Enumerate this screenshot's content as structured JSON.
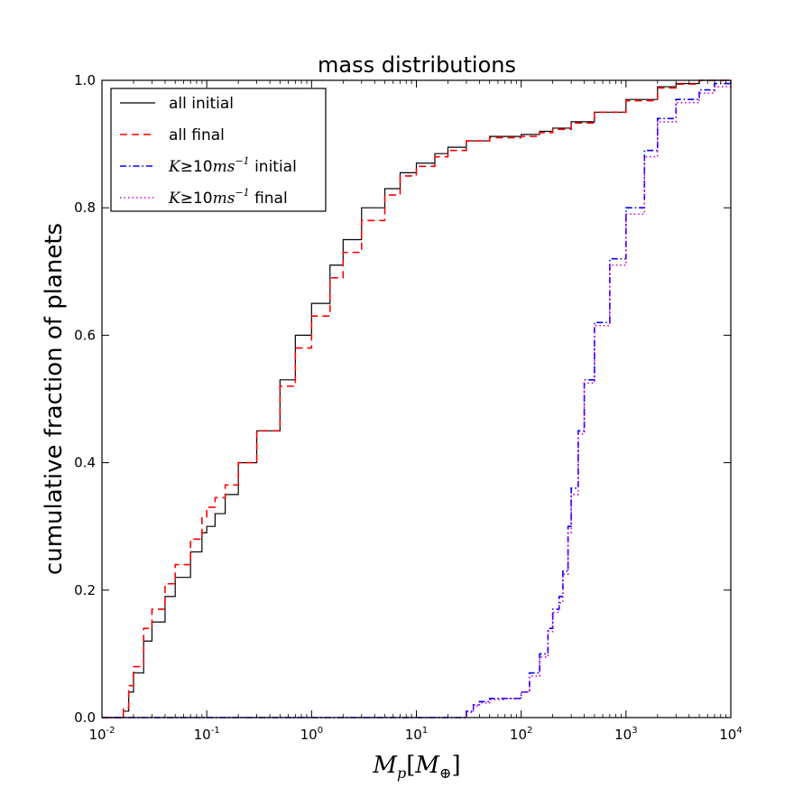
{
  "chart_data": {
    "type": "line",
    "title": "mass distributions",
    "xlabel": {
      "main": "M",
      "sub": "p",
      "open": "[",
      "inner": "M",
      "inner_sub": "⊕",
      "close": "]"
    },
    "ylabel": "cumulative fraction of planets",
    "xscale": "log",
    "xlim": [
      0.01,
      10000
    ],
    "ylim": [
      0.0,
      1.0
    ],
    "x_ticks": [
      {
        "value": 0.01,
        "base": "10",
        "exp": "-2"
      },
      {
        "value": 0.1,
        "base": "10",
        "exp": "-1"
      },
      {
        "value": 1,
        "base": "10",
        "exp": "0"
      },
      {
        "value": 10,
        "base": "10",
        "exp": "1"
      },
      {
        "value": 100,
        "base": "10",
        "exp": "2"
      },
      {
        "value": 1000,
        "base": "10",
        "exp": "3"
      },
      {
        "value": 10000,
        "base": "10",
        "exp": "4"
      }
    ],
    "y_ticks": [
      {
        "value": 0.0,
        "label": "0.0"
      },
      {
        "value": 0.2,
        "label": "0.2"
      },
      {
        "value": 0.4,
        "label": "0.4"
      },
      {
        "value": 0.6,
        "label": "0.6"
      },
      {
        "value": 0.8,
        "label": "0.8"
      },
      {
        "value": 1.0,
        "label": "1.0"
      }
    ],
    "legend_position": "upper-left",
    "series": [
      {
        "name": "all initial",
        "label_parts": [
          {
            "text": "all initial",
            "style": "text"
          }
        ],
        "color": "#000000",
        "linestyle": "solid",
        "x": [
          0.01,
          0.0145,
          0.016,
          0.018,
          0.02,
          0.025,
          0.03,
          0.04,
          0.05,
          0.07,
          0.09,
          0.1,
          0.12,
          0.15,
          0.2,
          0.3,
          0.5,
          0.7,
          1.0,
          1.5,
          2,
          3,
          5,
          7,
          10,
          15,
          20,
          30,
          50,
          100,
          150,
          200,
          300,
          500,
          1000,
          2000,
          3000,
          5000,
          10000
        ],
        "y": [
          0.0,
          0.0,
          0.01,
          0.04,
          0.07,
          0.12,
          0.15,
          0.19,
          0.22,
          0.26,
          0.29,
          0.3,
          0.32,
          0.35,
          0.4,
          0.45,
          0.53,
          0.6,
          0.65,
          0.71,
          0.75,
          0.8,
          0.83,
          0.855,
          0.87,
          0.885,
          0.895,
          0.905,
          0.912,
          0.915,
          0.92,
          0.925,
          0.935,
          0.95,
          0.97,
          0.99,
          0.995,
          1.0,
          1.0
        ]
      },
      {
        "name": "all final",
        "label_parts": [
          {
            "text": "all final",
            "style": "text"
          }
        ],
        "color": "#ff0000",
        "linestyle": "dashed",
        "x": [
          0.01,
          0.0145,
          0.016,
          0.018,
          0.02,
          0.025,
          0.03,
          0.04,
          0.05,
          0.07,
          0.09,
          0.1,
          0.12,
          0.15,
          0.2,
          0.3,
          0.5,
          0.7,
          1.0,
          1.5,
          2,
          3,
          5,
          7,
          10,
          15,
          20,
          30,
          50,
          100,
          150,
          200,
          300,
          500,
          1000,
          2000,
          3000,
          5000,
          10000
        ],
        "y": [
          0.0,
          0.0,
          0.015,
          0.05,
          0.08,
          0.14,
          0.17,
          0.21,
          0.24,
          0.28,
          0.315,
          0.33,
          0.345,
          0.365,
          0.4,
          0.45,
          0.52,
          0.58,
          0.63,
          0.69,
          0.73,
          0.78,
          0.82,
          0.85,
          0.865,
          0.88,
          0.89,
          0.905,
          0.91,
          0.912,
          0.918,
          0.923,
          0.933,
          0.95,
          0.968,
          0.988,
          0.994,
          1.0,
          1.0
        ]
      },
      {
        "name": "K≥10ms^-1 initial",
        "label_parts": [
          {
            "text": "K",
            "style": "math"
          },
          {
            "text": "≥10",
            "style": "upright"
          },
          {
            "text": "ms",
            "style": "math"
          },
          {
            "text": "−1",
            "style": "sup"
          },
          {
            "text": " initial",
            "style": "text"
          }
        ],
        "color": "#0000ff",
        "linestyle": "dashdot",
        "x": [
          0.01,
          28,
          30,
          35,
          40,
          50,
          70,
          100,
          120,
          150,
          180,
          200,
          230,
          250,
          280,
          300,
          350,
          400,
          500,
          700,
          1000,
          1500,
          2000,
          3000,
          5000,
          7000,
          10000
        ],
        "y": [
          0.0,
          0.0,
          0.01,
          0.02,
          0.025,
          0.03,
          0.03,
          0.04,
          0.07,
          0.1,
          0.14,
          0.17,
          0.19,
          0.23,
          0.3,
          0.36,
          0.45,
          0.53,
          0.62,
          0.72,
          0.8,
          0.89,
          0.94,
          0.97,
          0.985,
          0.995,
          1.0
        ]
      },
      {
        "name": "K≥10ms^-1 final",
        "label_parts": [
          {
            "text": "K",
            "style": "math"
          },
          {
            "text": "≥10",
            "style": "upright"
          },
          {
            "text": "ms",
            "style": "math"
          },
          {
            "text": "−1",
            "style": "sup"
          },
          {
            "text": " final",
            "style": "text"
          }
        ],
        "color": "#cc00cc",
        "linestyle": "dotted",
        "x": [
          0.01,
          28,
          30,
          35,
          40,
          50,
          70,
          100,
          120,
          150,
          180,
          200,
          230,
          250,
          280,
          300,
          350,
          400,
          500,
          700,
          1000,
          1500,
          2000,
          3000,
          5000,
          7000,
          10000
        ],
        "y": [
          0.0,
          0.0,
          0.008,
          0.018,
          0.023,
          0.028,
          0.03,
          0.04,
          0.065,
          0.095,
          0.135,
          0.165,
          0.18,
          0.225,
          0.29,
          0.35,
          0.445,
          0.525,
          0.615,
          0.71,
          0.79,
          0.88,
          0.935,
          0.965,
          0.98,
          0.99,
          1.0
        ]
      }
    ]
  }
}
